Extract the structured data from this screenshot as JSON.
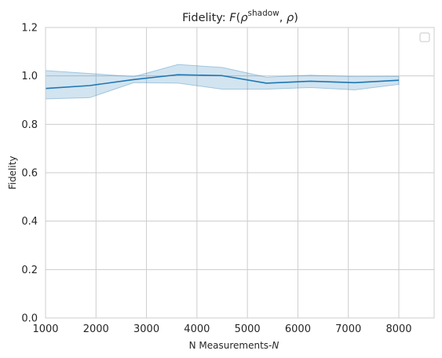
{
  "chart_data": {
    "type": "line",
    "title": {
      "prefix": "Fidelity: ",
      "func": "F",
      "open": "(",
      "rho1": "ρ",
      "superscript": "shadow",
      "sep": ", ",
      "rho2": "ρ",
      "close": ")"
    },
    "xlabel": {
      "text": "N Measurements-",
      "var": "N"
    },
    "ylabel": "Fidelity",
    "xlim": [
      1000,
      8700
    ],
    "ylim": [
      0.0,
      1.2
    ],
    "x_ticks": [
      1000,
      2000,
      3000,
      4000,
      5000,
      6000,
      7000,
      8000
    ],
    "x_tick_labels": [
      "1000",
      "2000",
      "3000",
      "4000",
      "5000",
      "6000",
      "7000",
      "8000"
    ],
    "y_ticks": [
      0.0,
      0.2,
      0.4,
      0.6,
      0.8,
      1.0,
      1.2
    ],
    "y_tick_labels": [
      "0.0",
      "0.2",
      "0.4",
      "0.6",
      "0.8",
      "1.0",
      "1.2"
    ],
    "grid": true,
    "legend": "top-right, empty",
    "line_color": "#1f77b4",
    "band_color": "#1f77b4",
    "series": [
      {
        "x": [
          1000,
          1875,
          2750,
          3625,
          4500,
          5375,
          6250,
          7125,
          8000
        ],
        "y": [
          0.948,
          0.96,
          0.985,
          1.005,
          1.001,
          0.97,
          0.978,
          0.972,
          0.982
        ],
        "lower": [
          0.905,
          0.91,
          0.972,
          0.97,
          0.945,
          0.945,
          0.952,
          0.942,
          0.965
        ],
        "upper": [
          1.022,
          1.01,
          0.997,
          1.047,
          1.035,
          0.995,
          1.003,
          0.997,
          0.998
        ]
      }
    ]
  }
}
